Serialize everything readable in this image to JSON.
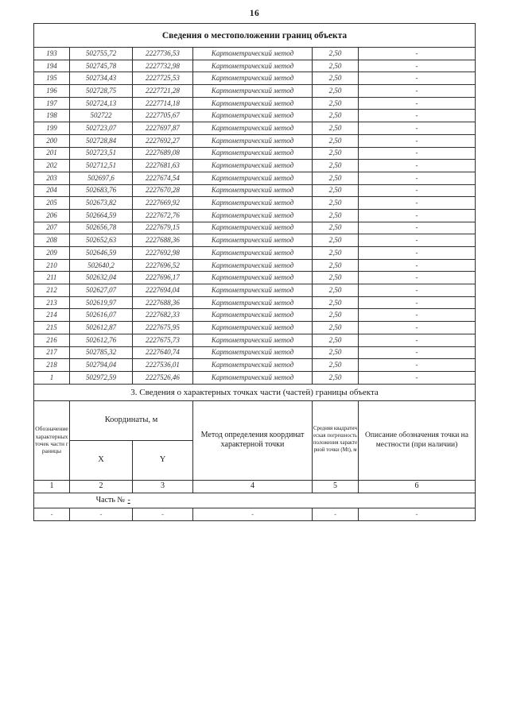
{
  "page": {
    "number": "16"
  },
  "upper_table": {
    "title": "Сведения о местоположении границ объекта",
    "rows": [
      [
        "193",
        "502755,72",
        "2227736,53",
        "Картометрический метод",
        "2,50",
        "-"
      ],
      [
        "194",
        "502745,78",
        "2227732,98",
        "Картометрический метод",
        "2,50",
        "-"
      ],
      [
        "195",
        "502734,43",
        "2227725,53",
        "Картометрический метод",
        "2,50",
        "-"
      ],
      [
        "196",
        "502728,75",
        "2227721,28",
        "Картометрический метод",
        "2,50",
        "-"
      ],
      [
        "197",
        "502724,13",
        "2227714,18",
        "Картометрический метод",
        "2,50",
        "-"
      ],
      [
        "198",
        "502722",
        "2227705,67",
        "Картометрический метод",
        "2,50",
        "-"
      ],
      [
        "199",
        "502723,07",
        "2227697,87",
        "Картометрический метод",
        "2,50",
        "-"
      ],
      [
        "200",
        "502728,84",
        "2227692,27",
        "Картометрический метод",
        "2,50",
        "-"
      ],
      [
        "201",
        "502723,51",
        "2227689,08",
        "Картометрический метод",
        "2,50",
        "-"
      ],
      [
        "202",
        "502712,51",
        "2227681,63",
        "Картометрический метод",
        "2,50",
        "-"
      ],
      [
        "203",
        "502697,6",
        "2227674,54",
        "Картометрический метод",
        "2,50",
        "-"
      ],
      [
        "204",
        "502683,76",
        "2227670,28",
        "Картометрический метод",
        "2,50",
        "-"
      ],
      [
        "205",
        "502673,82",
        "2227669,92",
        "Картометрический метод",
        "2,50",
        "-"
      ],
      [
        "206",
        "502664,59",
        "2227672,76",
        "Картометрический метод",
        "2,50",
        "-"
      ],
      [
        "207",
        "502656,78",
        "2227679,15",
        "Картометрический метод",
        "2,50",
        "-"
      ],
      [
        "208",
        "502652,63",
        "2227688,36",
        "Картометрический метод",
        "2,50",
        "-"
      ],
      [
        "209",
        "502646,59",
        "2227692,98",
        "Картометрический метод",
        "2,50",
        "-"
      ],
      [
        "210",
        "502640,2",
        "2227696,52",
        "Картометрический метод",
        "2,50",
        "-"
      ],
      [
        "211",
        "502632,04",
        "2227696,17",
        "Картометрический метод",
        "2,50",
        "-"
      ],
      [
        "212",
        "502627,07",
        "2227694,04",
        "Картометрический метод",
        "2,50",
        "-"
      ],
      [
        "213",
        "502619,97",
        "2227688,36",
        "Картометрический метод",
        "2,50",
        "-"
      ],
      [
        "214",
        "502616,07",
        "2227682,33",
        "Картометрический метод",
        "2,50",
        "-"
      ],
      [
        "215",
        "502612,87",
        "2227675,95",
        "Картометрический метод",
        "2,50",
        "-"
      ],
      [
        "216",
        "502612,76",
        "2227675,73",
        "Картометрический метод",
        "2,50",
        "-"
      ],
      [
        "217",
        "502785,32",
        "2227640,74",
        "Картометрический метод",
        "2,50",
        "-"
      ],
      [
        "218",
        "502794,04",
        "2227536,01",
        "Картометрический метод",
        "2,50",
        "-"
      ],
      [
        "1",
        "502972,59",
        "2227526,46",
        "Картометрический метод",
        "2,50",
        "-"
      ]
    ]
  },
  "section3": {
    "title": "3. Сведения о характерных точках части (частей) границы объекта"
  },
  "lower_table": {
    "headers": {
      "designation": "Обозначение характерных точек части границы",
      "coordinates": "Координаты, м",
      "x": "X",
      "y": "Y",
      "method": "Метод определения координат характерной точки",
      "error": "Средняя квадратическая погрешность положения характерной точки (Мt), м",
      "description": "Описание обозначения точки на местности (при наличии)"
    },
    "column_numbers": [
      "1",
      "2",
      "3",
      "4",
      "5",
      "6"
    ],
    "part_label": "Часть №",
    "part_value": "-",
    "empty_row": [
      "-",
      "-",
      "-",
      "-",
      "-",
      "-"
    ]
  }
}
